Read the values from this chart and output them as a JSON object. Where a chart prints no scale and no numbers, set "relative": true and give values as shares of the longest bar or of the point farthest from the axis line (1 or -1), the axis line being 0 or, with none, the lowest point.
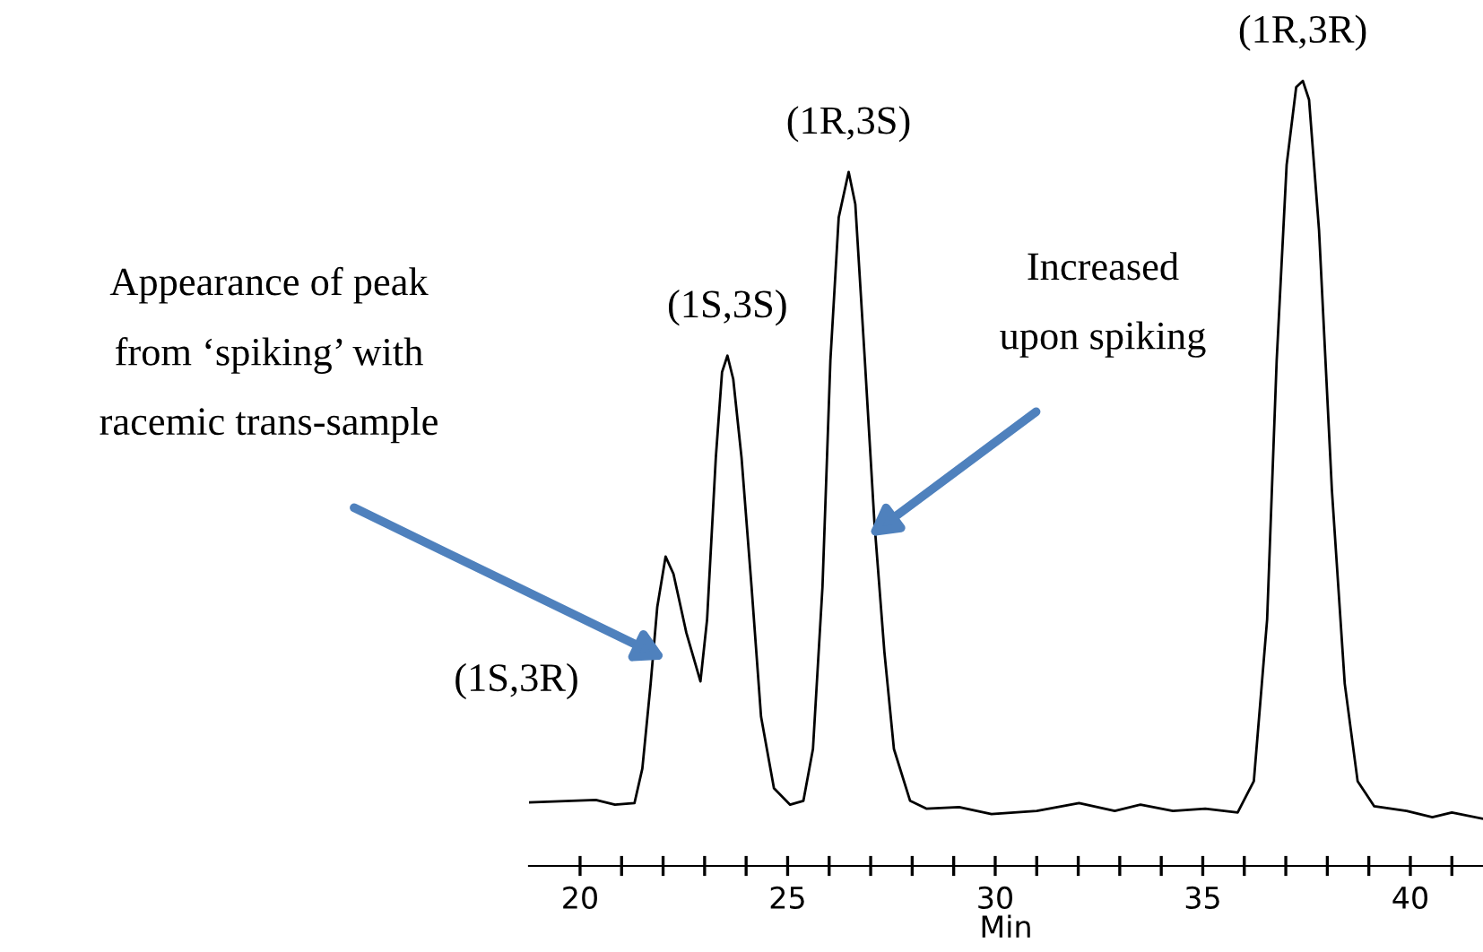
{
  "chart_data": {
    "type": "line",
    "relative": true,
    "xlabel": "Min",
    "color": "#000000",
    "marker": "none",
    "line_style": "solid",
    "grid": false,
    "xlim": [
      18.77,
      41.75
    ],
    "xticks": [
      20,
      {
        "value": 21,
        "label": null
      },
      {
        "value": 22,
        "label": null
      },
      {
        "value": 23,
        "label": null
      },
      {
        "value": 24,
        "label": null
      },
      25,
      {
        "value": 26,
        "label": null
      },
      {
        "value": 27,
        "label": null
      },
      {
        "value": 28,
        "label": null
      },
      {
        "value": 29,
        "label": null
      },
      30,
      {
        "value": 31,
        "label": null
      },
      {
        "value": 32,
        "label": null
      },
      {
        "value": 33,
        "label": null
      },
      {
        "value": 34,
        "label": null
      },
      35,
      {
        "value": 36,
        "label": null
      },
      {
        "value": 37,
        "label": null
      },
      {
        "value": 38,
        "label": null
      },
      {
        "value": 39,
        "label": null
      },
      40,
      {
        "value": 41,
        "label": null
      }
    ],
    "x": [
      18.77,
      20.38,
      20.84,
      21.31,
      21.5,
      21.7,
      21.86,
      22.06,
      22.25,
      22.56,
      22.9,
      23.06,
      23.27,
      23.42,
      23.55,
      23.69,
      23.89,
      24.13,
      24.36,
      24.67,
      25.06,
      25.38,
      25.61,
      25.84,
      26.03,
      26.23,
      26.47,
      26.63,
      26.86,
      27.09,
      27.33,
      27.56,
      27.95,
      28.34,
      29.13,
      29.91,
      31.0,
      32.02,
      32.88,
      33.5,
      34.28,
      35.06,
      35.84,
      36.23,
      36.55,
      36.78,
      37.02,
      37.25,
      37.41,
      37.56,
      37.8,
      38.11,
      38.42,
      38.73,
      39.13,
      39.91,
      40.53,
      41.0,
      41.75
    ],
    "values": [
      0.081,
      0.084,
      0.078,
      0.08,
      0.124,
      0.232,
      0.33,
      0.394,
      0.372,
      0.297,
      0.235,
      0.314,
      0.52,
      0.629,
      0.65,
      0.62,
      0.52,
      0.356,
      0.19,
      0.099,
      0.078,
      0.083,
      0.149,
      0.356,
      0.644,
      0.826,
      0.884,
      0.843,
      0.644,
      0.438,
      0.273,
      0.149,
      0.083,
      0.073,
      0.075,
      0.066,
      0.07,
      0.08,
      0.07,
      0.078,
      0.07,
      0.073,
      0.068,
      0.108,
      0.314,
      0.644,
      0.893,
      0.992,
      1.0,
      0.976,
      0.81,
      0.479,
      0.232,
      0.108,
      0.076,
      0.07,
      0.062,
      0.068,
      0.06
    ],
    "annotations": [
      "(1S,3R)",
      {
        "text": "(1S,3S)",
        "x": 23.55,
        "y": 0.65
      },
      {
        "text": "(1R,3S)",
        "x": 26.47,
        "y": 0.884
      },
      {
        "text": "(1R,3R)",
        "x": 37.41,
        "y": 1.0
      },
      "Appearance of peak\nfrom ‘spiking’ with\nracemic trans-sample",
      "Increased\nupon spiking"
    ]
  }
}
